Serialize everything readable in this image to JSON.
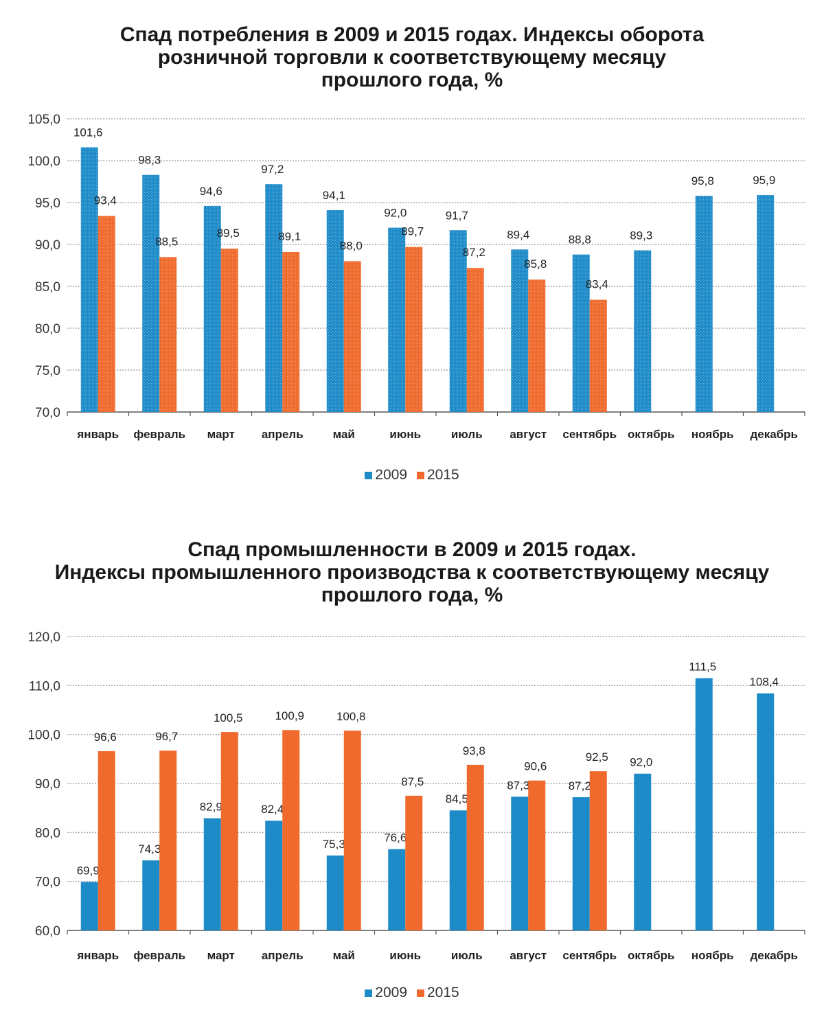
{
  "colors": {
    "s2009": "#1e8bc9",
    "s2015": "#ef6a2c",
    "grid": "#9a9a9a",
    "axis": "#555555"
  },
  "chart_data": [
    {
      "type": "bar",
      "title_lines": [
        "Спад потребления в 2009 и 2015 годах. Индексы оборота",
        "розничной торговли к соответствующему месяцу",
        "прошлого года, %"
      ],
      "categories": [
        "январь",
        "февраль",
        "март",
        "апрель",
        "май",
        "июнь",
        "июль",
        "август",
        "сентябрь",
        "октябрь",
        "ноябрь",
        "декабрь"
      ],
      "series": [
        {
          "name": "2009",
          "values": [
            101.6,
            98.3,
            94.6,
            97.2,
            94.1,
            92.0,
            91.7,
            89.4,
            88.8,
            89.3,
            95.8,
            95.9
          ]
        },
        {
          "name": "2015",
          "values": [
            93.4,
            88.5,
            89.5,
            89.1,
            88.0,
            89.7,
            87.2,
            85.8,
            83.4,
            null,
            null,
            null
          ]
        }
      ],
      "ylim": [
        70,
        105
      ],
      "ytick_step": 5,
      "ytick_labels": [
        "70,0",
        "75,0",
        "80,0",
        "85,0",
        "90,0",
        "95,0",
        "100,0",
        "105,0"
      ],
      "legend": [
        "2009",
        "2015"
      ],
      "legend_position": "bottom-center",
      "grid": true
    },
    {
      "type": "bar",
      "title_lines": [
        "Спад промышленности в 2009 и 2015 годах.",
        "Индексы промышленного производства к соответствующему месяцу",
        "прошлого года, %"
      ],
      "categories": [
        "январь",
        "февраль",
        "март",
        "апрель",
        "май",
        "июнь",
        "июль",
        "август",
        "сентябрь",
        "октябрь",
        "ноябрь",
        "декабрь"
      ],
      "series": [
        {
          "name": "2009",
          "values": [
            69.9,
            74.3,
            82.9,
            82.4,
            75.3,
            76.6,
            84.5,
            87.3,
            87.2,
            92.0,
            111.5,
            108.4
          ]
        },
        {
          "name": "2015",
          "values": [
            96.6,
            96.7,
            100.5,
            100.9,
            100.8,
            87.5,
            93.8,
            90.6,
            92.5,
            null,
            null,
            null
          ]
        }
      ],
      "ylim": [
        60,
        120
      ],
      "ytick_step": 10,
      "ytick_labels": [
        "60,0",
        "70,0",
        "80,0",
        "90,0",
        "100,0",
        "110,0",
        "120,0"
      ],
      "legend": [
        "2009",
        "2015"
      ],
      "legend_position": "bottom-center",
      "grid": true
    }
  ]
}
